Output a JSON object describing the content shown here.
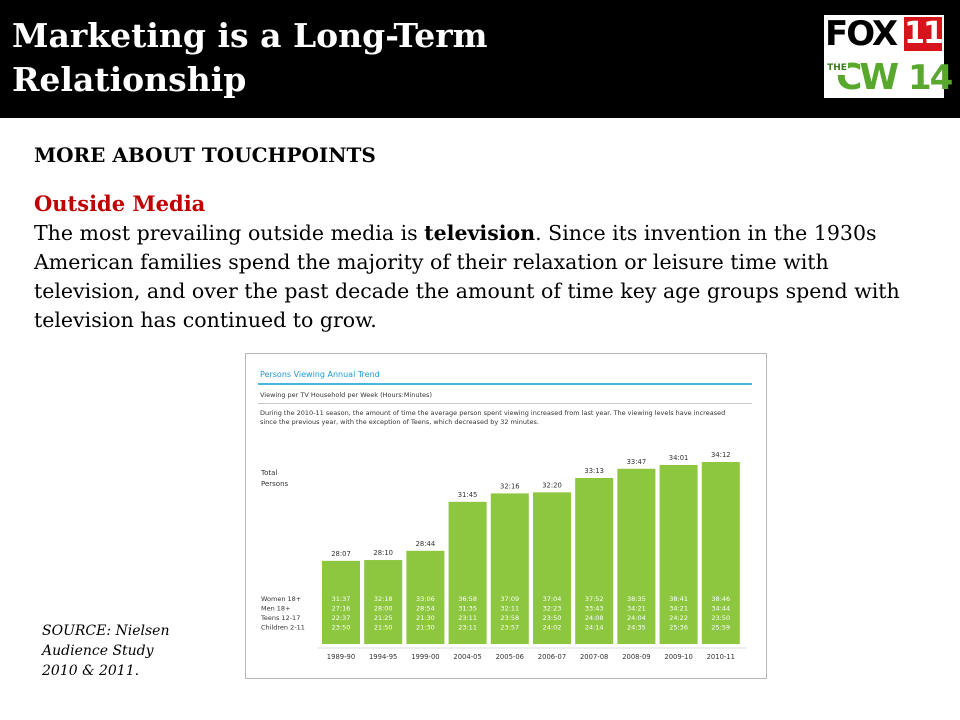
{
  "slide": {
    "title": "Marketing is a Long-Term Relationship",
    "subhead": "MORE ABOUT TOUCHPOINTS",
    "section_title": "Outside Media",
    "body_before": "The most prevailing outside media is ",
    "body_bold": "television",
    "body_after": ". Since its invention in the 1930s American families spend the majority of their relaxation or leisure time with television, and over the past decade the amount of time key age groups spend with television has continued to grow.",
    "source": "SOURCE: Nielsen Audience Study 2010 & 2011."
  },
  "logo": {
    "fox": "FOX",
    "fox_number": "11",
    "the": "THE",
    "cw": "CW",
    "cw_number": "14",
    "colors": {
      "fox_red": "#d6141c",
      "cw_green": "#58a82d"
    }
  },
  "figure": {
    "title": "Persons Viewing Annual Trend",
    "subtitle": "Viewing per TV Household per Week (Hours:Minutes)",
    "note": "During the 2010-11 season, the amount of time the average person spent viewing increased from last year. The viewing levels have increased since the previous year, with the exception of Teens, which decreased by 32 minutes."
  },
  "chart_data": {
    "type": "bar",
    "title": "Persons Viewing Annual Trend",
    "ylabel": "",
    "xlabel": "",
    "bar_color": "#8dc63f",
    "categories": [
      "1989-90",
      "1994-95",
      "1999-00",
      "2004-05",
      "2005-06",
      "2006-07",
      "2007-08",
      "2008-09",
      "2009-10",
      "2010-11"
    ],
    "total_label": "Total Persons",
    "total_values": [
      "28:07",
      "28:10",
      "28:44",
      "31:45",
      "32:16",
      "32:20",
      "33:13",
      "33:47",
      "34:01",
      "34:12"
    ],
    "total_minutes": [
      1687,
      1690,
      1724,
      1905,
      1936,
      1940,
      1993,
      2027,
      2041,
      2052
    ],
    "ylim_minutes": [
      1380,
      2052
    ],
    "group_labels": [
      "Women 18+",
      "Men 18+",
      "Teens 12-17",
      "Children 2-11"
    ],
    "series": [
      {
        "name": "Women 18+",
        "values": [
          "31:37",
          "32:18",
          "33:06",
          "36:58",
          "37:09",
          "37:04",
          "37:52",
          "38:35",
          "38:41",
          "38:46"
        ]
      },
      {
        "name": "Men 18+",
        "values": [
          "27:16",
          "28:00",
          "28:54",
          "31:35",
          "32:11",
          "32:23",
          "33:43",
          "34:21",
          "34:21",
          "34:44"
        ]
      },
      {
        "name": "Teens 12-17",
        "values": [
          "22:37",
          "21:25",
          "21:30",
          "23:11",
          "23:58",
          "23:50",
          "24:08",
          "24:04",
          "24:22",
          "23:50"
        ]
      },
      {
        "name": "Children 2-11",
        "values": [
          "23:50",
          "21:50",
          "21:30",
          "23:11",
          "23:57",
          "24:02",
          "24:14",
          "24:35",
          "25:36",
          "25:59"
        ]
      }
    ]
  }
}
